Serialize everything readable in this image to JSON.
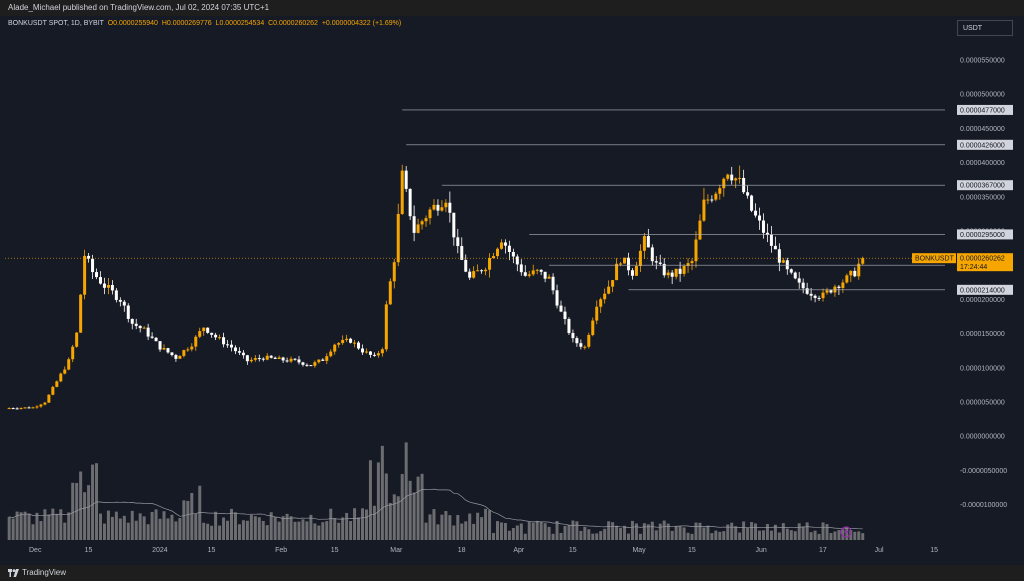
{
  "header": {
    "text": "Alade_Michael published on TradingView.com, Jul 02, 2024 07:35 UTC+1"
  },
  "legend": {
    "symbol": "BONKUSDT SPOT, 1D, BYBIT",
    "open": "O0.0000255940",
    "high": "H0.0000269776",
    "low": "L0.0000254534",
    "close": "C0.0000260262",
    "change": "+0.0000004322 (+1.69%)"
  },
  "currency": "USDT",
  "footer": {
    "brand": "TradingView"
  },
  "colors": {
    "bg": "#161a25",
    "up": "#f7a600",
    "down": "#ffffff",
    "volume": "#8a8a8a",
    "line": "#b2b5be"
  },
  "chart_data": {
    "type": "candlestick",
    "symbol": "BONKUSDT",
    "interval": "1D",
    "ylim": [
      -1.2e-05,
      6e-05
    ],
    "yticks": [
      "0.0000550000",
      "0.0000500000",
      "0.0000450000",
      "0.0000400000",
      "0.0000350000",
      "0.0000300000",
      "0.0000250000",
      "0.0000200000",
      "0.0000150000",
      "0.0000100000",
      "0.0000050000",
      "0.0000000000",
      "-0.0000050000",
      "-0.0000100000"
    ],
    "ytick_values": [
      5.5e-05,
      5e-05,
      4.5e-05,
      4e-05,
      3.5e-05,
      3e-05,
      2.5e-05,
      2e-05,
      1.5e-05,
      1e-05,
      5e-06,
      0,
      -5e-06,
      -1e-05
    ],
    "xticks": [
      "Dec",
      "15",
      "2024",
      "15",
      "Feb",
      "15",
      "Mar",
      "18",
      "Apr",
      "15",
      "May",
      "15",
      "Jun",
      "17",
      "Jul",
      "15"
    ],
    "xtick_days": [
      0,
      14,
      31,
      45,
      62,
      76,
      91,
      108,
      122,
      136,
      152,
      166,
      183,
      199,
      213,
      227
    ],
    "levels": [
      {
        "label": "0.0000477000",
        "value": 4.77e-05,
        "start_day": 93
      },
      {
        "label": "0.0000426000",
        "value": 4.26e-05,
        "start_day": 94
      },
      {
        "label": "0.0000367000",
        "value": 3.67e-05,
        "start_day": 103
      },
      {
        "label": "0.0000295000",
        "value": 2.95e-05,
        "start_day": 125
      },
      {
        "label": "0.0000250000",
        "value": 2.5e-05,
        "start_day": 130
      },
      {
        "label": "0.0000214000",
        "value": 2.14e-05,
        "start_day": 150
      }
    ],
    "current": {
      "label": "BONKUSDT",
      "price": "0.0000260262",
      "countdown": "17:24:44",
      "value": 2.60262e-05
    },
    "close_points": [
      [
        -7,
        4.1e-06
      ],
      [
        0,
        4.2e-06
      ],
      [
        3,
        5e-06
      ],
      [
        6,
        8e-06
      ],
      [
        9,
        1.1e-05
      ],
      [
        11,
        1.5e-05
      ],
      [
        13,
        2.65e-05
      ],
      [
        15,
        2.4e-05
      ],
      [
        18,
        2.2e-05
      ],
      [
        22,
        2e-05
      ],
      [
        25,
        1.65e-05
      ],
      [
        28,
        1.55e-05
      ],
      [
        32,
        1.3e-05
      ],
      [
        36,
        1.15e-05
      ],
      [
        40,
        1.35e-05
      ],
      [
        43,
        1.6e-05
      ],
      [
        46,
        1.45e-05
      ],
      [
        50,
        1.3e-05
      ],
      [
        54,
        1.1e-05
      ],
      [
        58,
        1.15e-05
      ],
      [
        62,
        1.12e-05
      ],
      [
        66,
        1.1e-05
      ],
      [
        70,
        1.04e-05
      ],
      [
        73,
        1.12e-05
      ],
      [
        76,
        1.35e-05
      ],
      [
        80,
        1.4e-05
      ],
      [
        83,
        1.25e-05
      ],
      [
        86,
        1.15e-05
      ],
      [
        88,
        1.3e-05
      ],
      [
        89,
        1.9e-05
      ],
      [
        91,
        2.6e-05
      ],
      [
        93,
        3.8e-05
      ],
      [
        96,
        3e-05
      ],
      [
        100,
        3.3e-05
      ],
      [
        104,
        3.5e-05
      ],
      [
        107,
        2.7e-05
      ],
      [
        110,
        2.3e-05
      ],
      [
        114,
        2.5e-05
      ],
      [
        118,
        2.9e-05
      ],
      [
        121,
        2.6e-05
      ],
      [
        124,
        2.35e-05
      ],
      [
        127,
        2.4e-05
      ],
      [
        130,
        2.3e-05
      ],
      [
        133,
        1.8e-05
      ],
      [
        136,
        1.4e-05
      ],
      [
        139,
        1.3e-05
      ],
      [
        142,
        1.95e-05
      ],
      [
        145,
        2.2e-05
      ],
      [
        148,
        2.6e-05
      ],
      [
        151,
        2.4e-05
      ],
      [
        154,
        2.85e-05
      ],
      [
        157,
        2.5e-05
      ],
      [
        160,
        2.35e-05
      ],
      [
        163,
        2.4e-05
      ],
      [
        166,
        2.55e-05
      ],
      [
        169,
        3.4e-05
      ],
      [
        172,
        3.6e-05
      ],
      [
        175,
        3.9e-05
      ],
      [
        178,
        3.7e-05
      ],
      [
        181,
        3.3e-05
      ],
      [
        184,
        3e-05
      ],
      [
        187,
        2.7e-05
      ],
      [
        190,
        2.4e-05
      ],
      [
        193,
        2.2e-05
      ],
      [
        196,
        2.1e-05
      ],
      [
        199,
        2.05e-05
      ],
      [
        202,
        2.2e-05
      ],
      [
        205,
        2.3e-05
      ],
      [
        207,
        2.4e-05
      ],
      [
        209,
        2.62e-05
      ]
    ]
  }
}
